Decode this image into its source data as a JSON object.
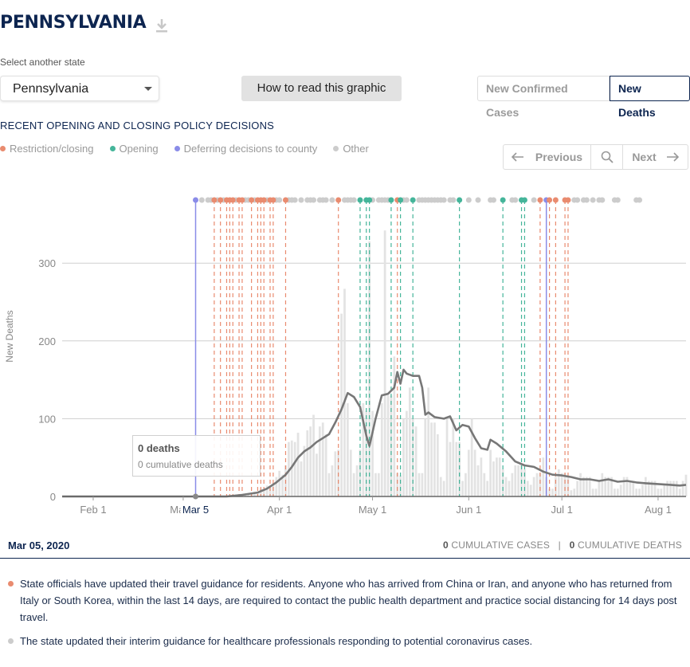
{
  "header": {
    "title": "PENNSYLVANIA",
    "download_icon": "download-icon"
  },
  "state_select": {
    "label": "Select another state",
    "value": "Pennsylvania"
  },
  "how_button": "How to read this graphic",
  "metric_toggle": {
    "option1": "New Confirmed Cases",
    "option2": "New Deaths",
    "selected": "New Deaths"
  },
  "policy": {
    "heading": "RECENT OPENING AND CLOSING POLICY DECISIONS",
    "legend": [
      {
        "label": "Restriction/closing",
        "color": "#e98b6f"
      },
      {
        "label": "Opening",
        "color": "#45b59a"
      },
      {
        "label": "Deferring decisions to county",
        "color": "#8a8ce8"
      },
      {
        "label": "Other",
        "color": "#cccccc"
      }
    ]
  },
  "pager": {
    "previous": "Previous",
    "next": "Next",
    "search_icon": "search-icon"
  },
  "tooltip": {
    "deaths": "0 deaths",
    "cumulative": "0 cumulative deaths"
  },
  "selected": {
    "date": "Mar 05, 2020",
    "cum_cases_value": "0",
    "cum_cases_label": "CUMULATIVE CASES",
    "separator": "|",
    "cum_deaths_value": "0",
    "cum_deaths_label": "CUMULATIVE DEATHS"
  },
  "notes": [
    {
      "color": "#e98b6f",
      "text": "State officials have updated their travel guidance for residents. Anyone who has arrived from China or Iran, and anyone who has returned from Italy or South Korea, within the last 14 days, are required to contact the public health department and practice social distancing for 14 days post travel."
    },
    {
      "color": "#cccccc",
      "text": "The state updated their interim guidance for healthcare professionals responding to potential coronavirus cases."
    }
  ],
  "chart_data": {
    "type": "bar",
    "ylabel": "New Deaths",
    "ylim": [
      0,
      300
    ],
    "yticks": [
      0,
      100,
      200,
      300
    ],
    "xticks": [
      {
        "date": "2020-02-01",
        "label": "Feb 1"
      },
      {
        "date": "2020-03-01",
        "label": "Mar 1"
      },
      {
        "date": "2020-04-01",
        "label": "Apr 1"
      },
      {
        "date": "2020-05-01",
        "label": "May 1"
      },
      {
        "date": "2020-06-01",
        "label": "Jun 1"
      },
      {
        "date": "2020-07-01",
        "label": "Jul 1"
      },
      {
        "date": "2020-08-01",
        "label": "Aug 1"
      }
    ],
    "x_start": "2020-01-22",
    "x_end": "2020-08-10",
    "selected_date": "2020-03-05",
    "selected_label": "Mar 5",
    "bars": [
      [
        "2020-03-18",
        1
      ],
      [
        "2020-03-19",
        2
      ],
      [
        "2020-03-20",
        1
      ],
      [
        "2020-03-21",
        3
      ],
      [
        "2020-03-22",
        2
      ],
      [
        "2020-03-23",
        4
      ],
      [
        "2020-03-24",
        6
      ],
      [
        "2020-03-25",
        5
      ],
      [
        "2020-03-26",
        10
      ],
      [
        "2020-03-27",
        8
      ],
      [
        "2020-03-28",
        14
      ],
      [
        "2020-03-29",
        12
      ],
      [
        "2020-03-30",
        17
      ],
      [
        "2020-03-31",
        25
      ],
      [
        "2020-04-01",
        33
      ],
      [
        "2020-04-02",
        28
      ],
      [
        "2020-04-03",
        40
      ],
      [
        "2020-04-04",
        70
      ],
      [
        "2020-04-05",
        72
      ],
      [
        "2020-04-06",
        70
      ],
      [
        "2020-04-07",
        82
      ],
      [
        "2020-04-08",
        45
      ],
      [
        "2020-04-09",
        65
      ],
      [
        "2020-04-10",
        85
      ],
      [
        "2020-04-11",
        90
      ],
      [
        "2020-04-12",
        105
      ],
      [
        "2020-04-13",
        55
      ],
      [
        "2020-04-14",
        90
      ],
      [
        "2020-04-15",
        95
      ],
      [
        "2020-04-16",
        80
      ],
      [
        "2020-04-17",
        30
      ],
      [
        "2020-04-18",
        40
      ],
      [
        "2020-04-19",
        58
      ],
      [
        "2020-04-20",
        60
      ],
      [
        "2020-04-21",
        235
      ],
      [
        "2020-04-22",
        267
      ],
      [
        "2020-04-23",
        120
      ],
      [
        "2020-04-24",
        60
      ],
      [
        "2020-04-25",
        30
      ],
      [
        "2020-04-26",
        40
      ],
      [
        "2020-04-27",
        60
      ],
      [
        "2020-04-28",
        120
      ],
      [
        "2020-04-29",
        110
      ],
      [
        "2020-04-30",
        328
      ],
      [
        "2020-05-01",
        110
      ],
      [
        "2020-05-02",
        30
      ],
      [
        "2020-05-03",
        30
      ],
      [
        "2020-05-04",
        120
      ],
      [
        "2020-05-05",
        342
      ],
      [
        "2020-05-06",
        130
      ],
      [
        "2020-05-07",
        130
      ],
      [
        "2020-05-08",
        180
      ],
      [
        "2020-05-09",
        30
      ],
      [
        "2020-05-10",
        27
      ],
      [
        "2020-05-11",
        100
      ],
      [
        "2020-05-12",
        110
      ],
      [
        "2020-05-13",
        140
      ],
      [
        "2020-05-14",
        100
      ],
      [
        "2020-05-15",
        90
      ],
      [
        "2020-05-16",
        30
      ],
      [
        "2020-05-17",
        30
      ],
      [
        "2020-05-18",
        100
      ],
      [
        "2020-05-19",
        140
      ],
      [
        "2020-05-20",
        95
      ],
      [
        "2020-05-21",
        95
      ],
      [
        "2020-05-22",
        80
      ],
      [
        "2020-05-23",
        25
      ],
      [
        "2020-05-24",
        20
      ],
      [
        "2020-05-25",
        100
      ],
      [
        "2020-05-26",
        70
      ],
      [
        "2020-05-27",
        100
      ],
      [
        "2020-05-28",
        70
      ],
      [
        "2020-05-29",
        70
      ],
      [
        "2020-05-30",
        20
      ],
      [
        "2020-05-31",
        30
      ],
      [
        "2020-06-01",
        60
      ],
      [
        "2020-06-02",
        100
      ],
      [
        "2020-06-03",
        60
      ],
      [
        "2020-06-04",
        40
      ],
      [
        "2020-06-05",
        50
      ],
      [
        "2020-06-06",
        30
      ],
      [
        "2020-06-07",
        20
      ],
      [
        "2020-06-08",
        60
      ],
      [
        "2020-06-09",
        45
      ],
      [
        "2020-06-10",
        50
      ],
      [
        "2020-06-11",
        50
      ],
      [
        "2020-06-12",
        35
      ],
      [
        "2020-06-13",
        25
      ],
      [
        "2020-06-14",
        20
      ],
      [
        "2020-06-15",
        30
      ],
      [
        "2020-06-16",
        40
      ],
      [
        "2020-06-17",
        40
      ],
      [
        "2020-06-18",
        40
      ],
      [
        "2020-06-19",
        35
      ],
      [
        "2020-06-20",
        20
      ],
      [
        "2020-06-21",
        15
      ],
      [
        "2020-06-22",
        25
      ],
      [
        "2020-06-23",
        30
      ],
      [
        "2020-06-24",
        30
      ],
      [
        "2020-06-25",
        50
      ],
      [
        "2020-06-26",
        25
      ],
      [
        "2020-06-27",
        10
      ],
      [
        "2020-06-28",
        10
      ],
      [
        "2020-06-29",
        25
      ],
      [
        "2020-06-30",
        35
      ],
      [
        "2020-07-01",
        30
      ],
      [
        "2020-07-02",
        30
      ],
      [
        "2020-07-03",
        25
      ],
      [
        "2020-07-04",
        8
      ],
      [
        "2020-07-05",
        10
      ],
      [
        "2020-07-06",
        20
      ],
      [
        "2020-07-07",
        30
      ],
      [
        "2020-07-08",
        25
      ],
      [
        "2020-07-09",
        25
      ],
      [
        "2020-07-10",
        25
      ],
      [
        "2020-07-11",
        10
      ],
      [
        "2020-07-12",
        10
      ],
      [
        "2020-07-13",
        20
      ],
      [
        "2020-07-14",
        30
      ],
      [
        "2020-07-15",
        25
      ],
      [
        "2020-07-16",
        25
      ],
      [
        "2020-07-17",
        25
      ],
      [
        "2020-07-18",
        10
      ],
      [
        "2020-07-19",
        10
      ],
      [
        "2020-07-20",
        15
      ],
      [
        "2020-07-21",
        25
      ],
      [
        "2020-07-22",
        25
      ],
      [
        "2020-07-23",
        20
      ],
      [
        "2020-07-24",
        20
      ],
      [
        "2020-07-25",
        10
      ],
      [
        "2020-07-26",
        10
      ],
      [
        "2020-07-27",
        15
      ],
      [
        "2020-07-28",
        25
      ],
      [
        "2020-07-29",
        20
      ],
      [
        "2020-07-30",
        20
      ],
      [
        "2020-07-31",
        20
      ],
      [
        "2020-08-01",
        10
      ],
      [
        "2020-08-02",
        10
      ],
      [
        "2020-08-03",
        15
      ],
      [
        "2020-08-04",
        20
      ],
      [
        "2020-08-05",
        20
      ],
      [
        "2020-08-06",
        20
      ],
      [
        "2020-08-07",
        20
      ],
      [
        "2020-08-08",
        10
      ],
      [
        "2020-08-09",
        20
      ],
      [
        "2020-08-10",
        28
      ]
    ],
    "average": [
      [
        "2020-01-22",
        0
      ],
      [
        "2020-03-15",
        0
      ],
      [
        "2020-03-20",
        2
      ],
      [
        "2020-03-25",
        5
      ],
      [
        "2020-03-28",
        10
      ],
      [
        "2020-03-31",
        18
      ],
      [
        "2020-04-03",
        28
      ],
      [
        "2020-04-05",
        38
      ],
      [
        "2020-04-07",
        50
      ],
      [
        "2020-04-09",
        58
      ],
      [
        "2020-04-11",
        63
      ],
      [
        "2020-04-13",
        70
      ],
      [
        "2020-04-15",
        75
      ],
      [
        "2020-04-17",
        80
      ],
      [
        "2020-04-19",
        95
      ],
      [
        "2020-04-21",
        112
      ],
      [
        "2020-04-23",
        133
      ],
      [
        "2020-04-25",
        128
      ],
      [
        "2020-04-27",
        115
      ],
      [
        "2020-04-29",
        78
      ],
      [
        "2020-04-30",
        65
      ],
      [
        "2020-05-02",
        100
      ],
      [
        "2020-05-04",
        130
      ],
      [
        "2020-05-06",
        132
      ],
      [
        "2020-05-08",
        140
      ],
      [
        "2020-05-09",
        160
      ],
      [
        "2020-05-10",
        145
      ],
      [
        "2020-05-11",
        163
      ],
      [
        "2020-05-12",
        158
      ],
      [
        "2020-05-14",
        155
      ],
      [
        "2020-05-16",
        155
      ],
      [
        "2020-05-17",
        140
      ],
      [
        "2020-05-18",
        105
      ],
      [
        "2020-05-19",
        108
      ],
      [
        "2020-05-21",
        102
      ],
      [
        "2020-05-24",
        100
      ],
      [
        "2020-05-26",
        103
      ],
      [
        "2020-05-28",
        85
      ],
      [
        "2020-05-30",
        92
      ],
      [
        "2020-06-01",
        90
      ],
      [
        "2020-06-03",
        75
      ],
      [
        "2020-06-05",
        62
      ],
      [
        "2020-06-07",
        60
      ],
      [
        "2020-06-08",
        73
      ],
      [
        "2020-06-10",
        68
      ],
      [
        "2020-06-13",
        58
      ],
      [
        "2020-06-16",
        45
      ],
      [
        "2020-06-19",
        40
      ],
      [
        "2020-06-22",
        38
      ],
      [
        "2020-06-25",
        32
      ],
      [
        "2020-06-28",
        28
      ],
      [
        "2020-07-01",
        27
      ],
      [
        "2020-07-04",
        25
      ],
      [
        "2020-07-07",
        22
      ],
      [
        "2020-07-10",
        22
      ],
      [
        "2020-07-13",
        20
      ],
      [
        "2020-07-16",
        22
      ],
      [
        "2020-07-19",
        19
      ],
      [
        "2020-07-22",
        20
      ],
      [
        "2020-07-25",
        18
      ],
      [
        "2020-07-28",
        17
      ],
      [
        "2020-08-01",
        16
      ],
      [
        "2020-08-05",
        15
      ],
      [
        "2020-08-08",
        14
      ],
      [
        "2020-08-10",
        15
      ]
    ],
    "policy_events": [
      {
        "date": "2020-03-05",
        "type": "deferring"
      },
      {
        "date": "2020-03-11",
        "type": "restriction"
      },
      {
        "date": "2020-03-13",
        "type": "restriction"
      },
      {
        "date": "2020-03-15",
        "type": "restriction"
      },
      {
        "date": "2020-03-16",
        "type": "restriction"
      },
      {
        "date": "2020-03-17",
        "type": "restriction"
      },
      {
        "date": "2020-03-19",
        "type": "restriction"
      },
      {
        "date": "2020-03-20",
        "type": "restriction"
      },
      {
        "date": "2020-03-23",
        "type": "restriction"
      },
      {
        "date": "2020-03-25",
        "type": "restriction"
      },
      {
        "date": "2020-03-26",
        "type": "restriction"
      },
      {
        "date": "2020-03-27",
        "type": "restriction"
      },
      {
        "date": "2020-03-29",
        "type": "restriction"
      },
      {
        "date": "2020-03-30",
        "type": "restriction"
      },
      {
        "date": "2020-04-03",
        "type": "restriction"
      },
      {
        "date": "2020-04-20",
        "type": "restriction"
      },
      {
        "date": "2020-04-27",
        "type": "opening"
      },
      {
        "date": "2020-04-29",
        "type": "opening"
      },
      {
        "date": "2020-04-30",
        "type": "opening"
      },
      {
        "date": "2020-05-07",
        "type": "opening"
      },
      {
        "date": "2020-05-09",
        "type": "restriction"
      },
      {
        "date": "2020-05-10",
        "type": "opening"
      },
      {
        "date": "2020-05-14",
        "type": "opening"
      },
      {
        "date": "2020-05-29",
        "type": "opening"
      },
      {
        "date": "2020-06-12",
        "type": "opening"
      },
      {
        "date": "2020-06-18",
        "type": "opening"
      },
      {
        "date": "2020-06-19",
        "type": "opening"
      },
      {
        "date": "2020-06-24",
        "type": "restriction"
      },
      {
        "date": "2020-06-26",
        "type": "deferring"
      },
      {
        "date": "2020-06-27",
        "type": "restriction"
      },
      {
        "date": "2020-06-29",
        "type": "restriction"
      },
      {
        "date": "2020-07-02",
        "type": "restriction"
      },
      {
        "date": "2020-07-03",
        "type": "restriction"
      }
    ],
    "other_events": [
      "2020-03-07",
      "2020-03-09",
      "2020-03-10",
      "2020-03-12",
      "2020-03-14",
      "2020-03-18",
      "2020-03-21",
      "2020-03-22",
      "2020-03-24",
      "2020-03-28",
      "2020-03-31",
      "2020-04-01",
      "2020-04-04",
      "2020-04-05",
      "2020-04-06",
      "2020-04-08",
      "2020-04-10",
      "2020-04-11",
      "2020-04-12",
      "2020-04-14",
      "2020-04-15",
      "2020-04-16",
      "2020-04-18",
      "2020-04-22",
      "2020-04-23",
      "2020-04-24",
      "2020-04-25",
      "2020-05-01",
      "2020-05-03",
      "2020-05-04",
      "2020-05-05",
      "2020-05-06",
      "2020-05-11",
      "2020-05-12",
      "2020-05-16",
      "2020-05-17",
      "2020-05-18",
      "2020-05-19",
      "2020-05-20",
      "2020-05-21",
      "2020-05-22",
      "2020-05-23",
      "2020-05-24",
      "2020-05-26",
      "2020-05-27",
      "2020-06-01",
      "2020-06-04",
      "2020-06-08",
      "2020-06-09",
      "2020-06-15",
      "2020-06-16",
      "2020-06-22",
      "2020-07-05",
      "2020-07-06",
      "2020-07-08",
      "2020-07-09",
      "2020-07-11",
      "2020-07-13",
      "2020-07-14",
      "2020-07-18",
      "2020-07-19",
      "2020-07-25",
      "2020-07-26"
    ]
  }
}
